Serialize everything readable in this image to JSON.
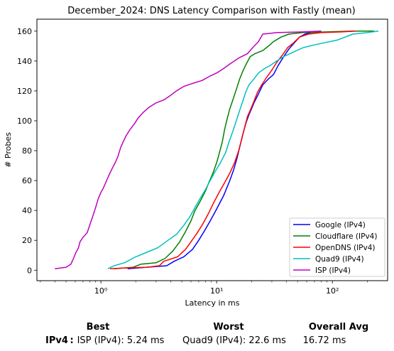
{
  "chart_data": {
    "type": "line",
    "title": "December_2024: DNS Latency Comparison with Fastly (mean)",
    "xlabel": "Latency in ms",
    "ylabel": "# Probes",
    "xscale": "log",
    "xlim": [
      0.28,
      300
    ],
    "ylim": [
      -7,
      168
    ],
    "xticks": [
      1,
      10,
      100
    ],
    "xtick_labels": [
      "10⁰",
      "10¹",
      "10²"
    ],
    "yticks": [
      0,
      20,
      40,
      60,
      80,
      100,
      120,
      140,
      160
    ],
    "grid": false,
    "legend": "bottom-right",
    "series": [
      {
        "name": "Google (IPv4)",
        "color": "#0000ff",
        "points": [
          [
            1.7,
            1
          ],
          [
            2.5,
            2
          ],
          [
            3.7,
            3
          ],
          [
            4.3,
            6
          ],
          [
            5.2,
            9
          ],
          [
            6.2,
            14
          ],
          [
            7.0,
            20
          ],
          [
            7.8,
            26
          ],
          [
            8.8,
            33
          ],
          [
            10.0,
            41
          ],
          [
            11.5,
            50
          ],
          [
            13.0,
            60
          ],
          [
            14.0,
            67
          ],
          [
            15.0,
            75
          ],
          [
            16.0,
            84
          ],
          [
            17.0,
            92
          ],
          [
            18.0,
            99
          ],
          [
            19.0,
            104
          ],
          [
            20.0,
            108
          ],
          [
            21.0,
            112
          ],
          [
            23.0,
            118
          ],
          [
            25.0,
            124
          ],
          [
            28.0,
            128
          ],
          [
            31.0,
            131
          ],
          [
            34.0,
            137
          ],
          [
            38.0,
            143
          ],
          [
            42.0,
            148
          ],
          [
            48.0,
            153
          ],
          [
            52.0,
            156
          ],
          [
            58.0,
            158
          ],
          [
            65.0,
            159
          ],
          [
            80.0,
            160
          ]
        ]
      },
      {
        "name": "Cloudflare (IPv4)",
        "color": "#008000",
        "points": [
          [
            1.3,
            1
          ],
          [
            1.9,
            2
          ],
          [
            2.2,
            4
          ],
          [
            3.0,
            5
          ],
          [
            3.6,
            8
          ],
          [
            4.2,
            13
          ],
          [
            4.8,
            19
          ],
          [
            5.4,
            26
          ],
          [
            6.0,
            33
          ],
          [
            6.5,
            40
          ],
          [
            7.2,
            46
          ],
          [
            8.0,
            53
          ],
          [
            8.6,
            59
          ],
          [
            9.3,
            65
          ],
          [
            10.0,
            72
          ],
          [
            10.6,
            79
          ],
          [
            11.2,
            86
          ],
          [
            11.7,
            94
          ],
          [
            12.3,
            101
          ],
          [
            13.0,
            108
          ],
          [
            13.8,
            114
          ],
          [
            14.8,
            121
          ],
          [
            15.8,
            128
          ],
          [
            16.8,
            133
          ],
          [
            18.0,
            138
          ],
          [
            19.5,
            143
          ],
          [
            21.5,
            145
          ],
          [
            25.0,
            147
          ],
          [
            28.0,
            150
          ],
          [
            31.0,
            153
          ],
          [
            36.0,
            156
          ],
          [
            42.0,
            158
          ],
          [
            55.0,
            159
          ],
          [
            90.0,
            159.5
          ],
          [
            150.0,
            160
          ],
          [
            230.0,
            160
          ]
        ]
      },
      {
        "name": "OpenDNS (IPv4)",
        "color": "#ff0000",
        "points": [
          [
            1.2,
            1
          ],
          [
            1.6,
            1.5
          ],
          [
            2.5,
            2
          ],
          [
            3.2,
            3
          ],
          [
            3.5,
            6
          ],
          [
            4.6,
            9
          ],
          [
            5.4,
            14
          ],
          [
            6.0,
            19
          ],
          [
            6.8,
            25
          ],
          [
            7.6,
            31
          ],
          [
            8.5,
            38
          ],
          [
            9.4,
            45
          ],
          [
            10.5,
            52
          ],
          [
            11.8,
            59
          ],
          [
            13.0,
            65
          ],
          [
            14.3,
            72
          ],
          [
            15.5,
            80
          ],
          [
            16.5,
            88
          ],
          [
            17.5,
            96
          ],
          [
            18.5,
            103
          ],
          [
            19.5,
            107
          ],
          [
            21.0,
            113
          ],
          [
            22.5,
            119
          ],
          [
            24.5,
            124
          ],
          [
            27.0,
            129
          ],
          [
            30.0,
            134
          ],
          [
            33.0,
            139
          ],
          [
            37.0,
            144
          ],
          [
            41.0,
            149
          ],
          [
            46.0,
            152
          ],
          [
            52.0,
            156
          ],
          [
            62.0,
            158
          ],
          [
            80.0,
            159
          ],
          [
            120.0,
            159.5
          ],
          [
            160.0,
            160
          ]
        ]
      },
      {
        "name": "Quad9 (IPv4)",
        "color": "#00bfbf",
        "points": [
          [
            1.15,
            1
          ],
          [
            1.3,
            3
          ],
          [
            1.6,
            5
          ],
          [
            2.0,
            9
          ],
          [
            2.5,
            12
          ],
          [
            3.1,
            15
          ],
          [
            3.8,
            20
          ],
          [
            4.5,
            24
          ],
          [
            5.2,
            30
          ],
          [
            5.9,
            36
          ],
          [
            6.5,
            42
          ],
          [
            7.2,
            48
          ],
          [
            8.0,
            54
          ],
          [
            8.8,
            60
          ],
          [
            9.7,
            66
          ],
          [
            10.8,
            72
          ],
          [
            12.0,
            79
          ],
          [
            12.8,
            86
          ],
          [
            13.8,
            93
          ],
          [
            14.8,
            100
          ],
          [
            15.8,
            107
          ],
          [
            16.8,
            113
          ],
          [
            17.8,
            119
          ],
          [
            19.0,
            124
          ],
          [
            21.0,
            128
          ],
          [
            23.0,
            132
          ],
          [
            26.0,
            135
          ],
          [
            29.0,
            137
          ],
          [
            33.0,
            140
          ],
          [
            38.0,
            143
          ],
          [
            46.0,
            146
          ],
          [
            56.0,
            149
          ],
          [
            72.0,
            151
          ],
          [
            110.0,
            154
          ],
          [
            150.0,
            158
          ],
          [
            200.0,
            159
          ],
          [
            250.0,
            160
          ]
        ]
      },
      {
        "name": "ISP (IPv4)",
        "color": "#bf00bf",
        "points": [
          [
            0.4,
            1
          ],
          [
            0.5,
            2
          ],
          [
            0.55,
            4
          ],
          [
            0.58,
            8
          ],
          [
            0.61,
            12
          ],
          [
            0.64,
            15
          ],
          [
            0.66,
            19
          ],
          [
            0.7,
            22
          ],
          [
            0.76,
            25
          ],
          [
            0.8,
            30
          ],
          [
            0.85,
            36
          ],
          [
            0.9,
            42
          ],
          [
            0.95,
            48
          ],
          [
            1.0,
            52
          ],
          [
            1.05,
            55
          ],
          [
            1.12,
            60
          ],
          [
            1.18,
            64
          ],
          [
            1.25,
            68
          ],
          [
            1.33,
            72
          ],
          [
            1.4,
            76
          ],
          [
            1.48,
            82
          ],
          [
            1.56,
            86
          ],
          [
            1.65,
            90
          ],
          [
            1.78,
            94
          ],
          [
            1.95,
            98
          ],
          [
            2.1,
            102
          ],
          [
            2.35,
            106
          ],
          [
            2.6,
            109
          ],
          [
            3.0,
            112
          ],
          [
            3.5,
            114
          ],
          [
            4.0,
            117
          ],
          [
            4.5,
            120
          ],
          [
            5.2,
            123
          ],
          [
            6.2,
            125
          ],
          [
            7.5,
            127
          ],
          [
            8.8,
            130
          ],
          [
            10.0,
            132
          ],
          [
            11.5,
            135
          ],
          [
            13.0,
            138
          ],
          [
            15.5,
            142
          ],
          [
            18.5,
            145
          ],
          [
            20.5,
            149
          ],
          [
            23.0,
            153
          ],
          [
            25.0,
            158
          ],
          [
            33.0,
            159
          ],
          [
            55.0,
            159.5
          ],
          [
            80.0,
            160
          ]
        ]
      }
    ]
  },
  "summary": {
    "headers": {
      "best": "Best",
      "worst": "Worst",
      "avg": "Overall Avg"
    },
    "row_label": "IPv4 :",
    "best": "ISP (IPv4): 5.24 ms",
    "worst": "Quad9 (IPv4): 22.6 ms",
    "avg": "16.72 ms"
  }
}
